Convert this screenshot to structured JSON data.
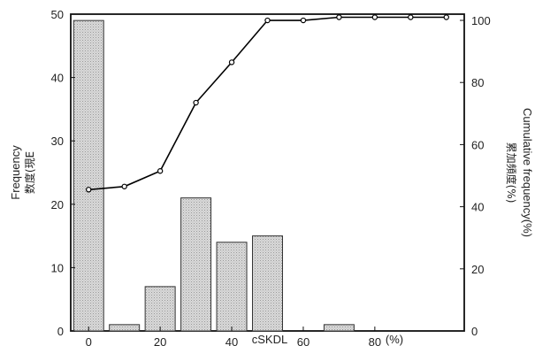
{
  "chart_data": {
    "type": "bar",
    "bars": [
      {
        "x": 0,
        "value": 49
      },
      {
        "x": 10,
        "value": 1
      },
      {
        "x": 20,
        "value": 7
      },
      {
        "x": 30,
        "value": 21
      },
      {
        "x": 40,
        "value": 14
      },
      {
        "x": 50,
        "value": 15
      },
      {
        "x": 60,
        "value": 0
      },
      {
        "x": 70,
        "value": 1
      },
      {
        "x": 80,
        "value": 0
      },
      {
        "x": 90,
        "value": 0
      },
      {
        "x": 100,
        "value": 0
      }
    ],
    "cumulative": {
      "x": [
        0,
        10,
        20,
        30,
        40,
        50,
        60,
        70,
        80,
        90,
        100
      ],
      "values": [
        45.5,
        46.5,
        51.5,
        73.5,
        86.5,
        100,
        100,
        101,
        101,
        101,
        101
      ]
    },
    "xlabel": "cSKDL",
    "xunit": "(%)",
    "ylabel_left": "Frequency",
    "ylabel_left_jp": "数度(現E",
    "ylabel_right": "Cumulative frequency(%)",
    "ylabel_right_jp": "累加頻度(%)",
    "xticks": [
      "0",
      "20",
      "40",
      "60",
      "80"
    ],
    "yticks_left": [
      "0",
      "10",
      "20",
      "30",
      "40",
      "50"
    ],
    "yticks_right": [
      "0",
      "20",
      "40",
      "60",
      "80",
      "100"
    ],
    "xlim": [
      -5,
      105
    ],
    "ylim_left": [
      0,
      50
    ],
    "ylim_right": [
      0,
      102
    ],
    "grid": false,
    "bar_color": "#d9d9d9",
    "line_color": "#000000"
  }
}
